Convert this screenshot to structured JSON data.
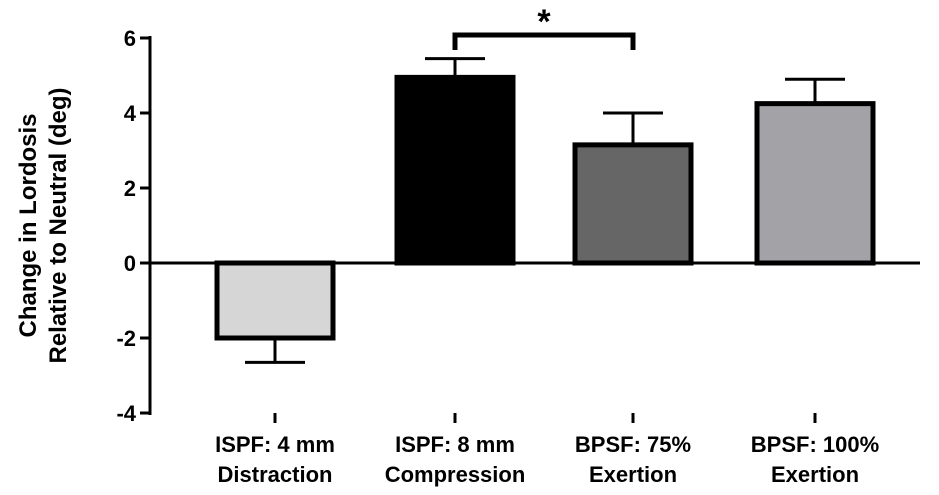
{
  "chart_data": {
    "type": "bar",
    "title": "",
    "xlabel": "",
    "ylabel": [
      "Change in Lordosis",
      "Relative to Neutral (deg)"
    ],
    "ylim": [
      -4,
      6
    ],
    "yticks": [
      -4,
      -2,
      0,
      2,
      4,
      6
    ],
    "ytick_labels": [
      "-4",
      "-2",
      "0",
      "2",
      "4",
      "6"
    ],
    "categories": [
      [
        "ISPF: 4 mm",
        "Distraction"
      ],
      [
        "ISPF: 8 mm",
        "Compression"
      ],
      [
        "BPSF: 75%",
        "Exertion"
      ],
      [
        "BPSF: 100%",
        "Exertion"
      ]
    ],
    "values": [
      -2.0,
      4.95,
      3.15,
      4.25
    ],
    "error_upper": [
      null,
      5.45,
      4.0,
      4.9
    ],
    "error_lower": [
      -2.65,
      null,
      null,
      null
    ],
    "bar_colors": [
      "#d6d6d6",
      "#000000",
      "#666666",
      "#a3a3a7"
    ],
    "significance": [
      {
        "from": 1,
        "to": 2,
        "label": "*"
      }
    ],
    "grid": false,
    "legend": "none"
  }
}
